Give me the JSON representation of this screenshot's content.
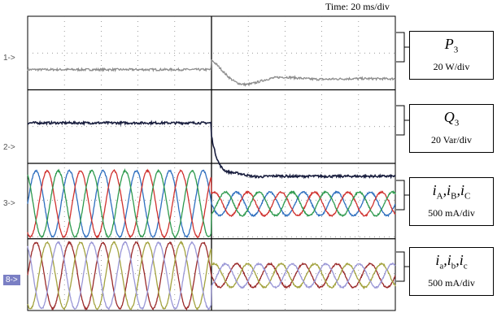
{
  "chart_data": {
    "type": "line",
    "timebase": "Time: 20 ms/div",
    "divisions": {
      "x": 10,
      "y": 8
    },
    "event_div": 5,
    "channels": [
      {
        "id": "1",
        "marker": "1->",
        "symbol": "P",
        "sub": "3",
        "scale": "20 W/div",
        "color": "#8c8c8c",
        "before_level_div": 6.55,
        "after_level_div": 6.3,
        "transient": "ramp_up"
      },
      {
        "id": "2",
        "marker": "2->",
        "symbol": "Q",
        "sub": "3",
        "scale": "20 Var/div",
        "color": "#1a1f3f",
        "before_level_div": 5.1,
        "after_level_div": 3.65,
        "transient": "drop"
      },
      {
        "id": "3",
        "marker": "3->",
        "symbols": [
          {
            "s": "i",
            "sub": "A"
          },
          {
            "s": "i",
            "sub": "B"
          },
          {
            "s": "i",
            "sub": "C"
          }
        ],
        "scale": "500 mA/div",
        "colors": [
          "#2e6fbf",
          "#d0322f",
          "#2e9a4e"
        ],
        "center_div": 2.9,
        "before_amp_div": 0.9,
        "after_amp_div": 0.32,
        "cycles": 11
      },
      {
        "id": "4",
        "marker": "8->",
        "symbols": [
          {
            "s": "i",
            "sub": "a"
          },
          {
            "s": "i",
            "sub": "b"
          },
          {
            "s": "i",
            "sub": "c"
          }
        ],
        "scale": "500 mA/div",
        "colors": [
          "#9a2a2a",
          "#a3a33f",
          "#9a97d6"
        ],
        "center_div": 0.95,
        "before_amp_div": 0.9,
        "after_amp_div": 0.32,
        "cycles": 11
      }
    ]
  }
}
